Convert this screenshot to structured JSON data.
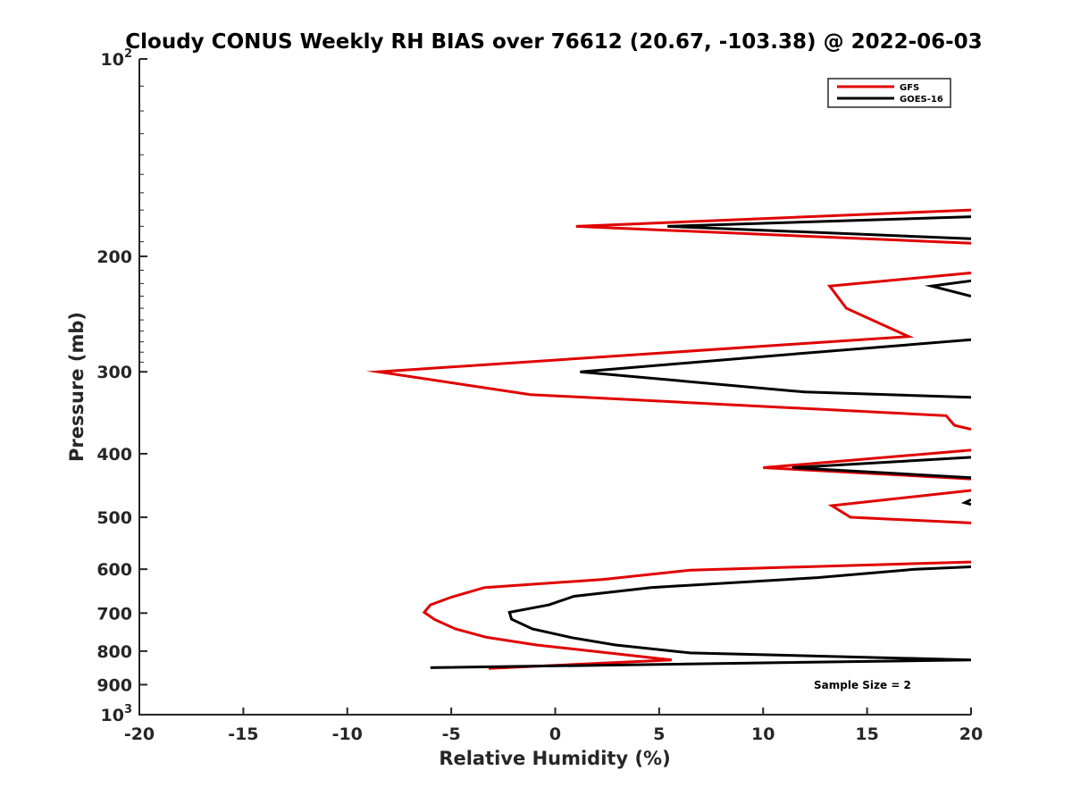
{
  "chart_data": {
    "type": "line",
    "title": "Cloudy CONUS Weekly RH BIAS over 76612 (20.67, -103.38) @ 2022-06-03",
    "xlabel": "Relative Humidity (%)",
    "ylabel": "Pressure (mb)",
    "xlim": [
      -20,
      20
    ],
    "ylim": [
      100,
      1000
    ],
    "yscale": "log",
    "y_reversed": true,
    "grid": false,
    "legend_position": "top-right",
    "annotation": "Sample Size = 2",
    "x_ticks": [
      {
        "value": -20,
        "label": "-20"
      },
      {
        "value": -15,
        "label": "-15"
      },
      {
        "value": -10,
        "label": "-10"
      },
      {
        "value": -5,
        "label": "-5"
      },
      {
        "value": 0,
        "label": "0"
      },
      {
        "value": 5,
        "label": "5"
      },
      {
        "value": 10,
        "label": "10"
      },
      {
        "value": 15,
        "label": "15"
      },
      {
        "value": 20,
        "label": "20"
      }
    ],
    "y_ticks": [
      {
        "value": 100,
        "base": "10",
        "exp": "2"
      },
      {
        "value": 200,
        "base": "200",
        "exp": ""
      },
      {
        "value": 300,
        "base": "300",
        "exp": ""
      },
      {
        "value": 400,
        "base": "400",
        "exp": ""
      },
      {
        "value": 500,
        "base": "500",
        "exp": ""
      },
      {
        "value": 600,
        "base": "600",
        "exp": ""
      },
      {
        "value": 700,
        "base": "700",
        "exp": ""
      },
      {
        "value": 800,
        "base": "800",
        "exp": ""
      },
      {
        "value": 900,
        "base": "900",
        "exp": ""
      },
      {
        "value": 1000,
        "base": "10",
        "exp": "3"
      }
    ],
    "series": [
      {
        "name": "GFS",
        "color": "#e00000",
        "segments": [
          [
            [
              20,
              170
            ],
            [
              1,
              180
            ],
            [
              20,
              191
            ]
          ],
          [
            [
              20,
              212
            ],
            [
              13.2,
              222
            ],
            [
              14,
              240
            ],
            [
              17,
              265
            ],
            [
              -8.5,
              300
            ],
            [
              -1.2,
              325
            ],
            [
              18.8,
              350
            ],
            [
              19.2,
              362
            ],
            [
              20,
              367
            ]
          ],
          [
            [
              20,
              395
            ],
            [
              10,
              420
            ],
            [
              20,
              437
            ]
          ],
          [
            [
              20,
              455
            ],
            [
              13.3,
              480
            ],
            [
              14.2,
              500
            ],
            [
              20,
              510
            ]
          ],
          [
            [
              20,
              585
            ],
            [
              6.5,
              602
            ],
            [
              2.3,
              622
            ],
            [
              -3.4,
              640
            ],
            [
              -5,
              662
            ],
            [
              -6,
              680
            ],
            [
              -6.3,
              698
            ],
            [
              -5.8,
              716
            ],
            [
              -4.8,
              740
            ],
            [
              -3.3,
              762
            ],
            [
              -0.9,
              783
            ],
            [
              5.6,
              825
            ],
            [
              -3.2,
              850
            ]
          ]
        ]
      },
      {
        "name": "GOES-16",
        "color": "#000000",
        "segments": [
          [
            [
              20,
              174
            ],
            [
              5.4,
              180
            ],
            [
              20,
              188
            ]
          ],
          [
            [
              20,
              218
            ],
            [
              18.1,
              222
            ],
            [
              20,
              230
            ]
          ],
          [
            [
              20,
              268
            ],
            [
              10.8,
              283
            ],
            [
              1.2,
              300
            ],
            [
              12,
              322
            ],
            [
              20,
              328
            ]
          ],
          [
            [
              20,
              405
            ],
            [
              11.4,
              420
            ],
            [
              20,
              435
            ]
          ],
          [
            [
              20,
              470
            ],
            [
              19.7,
              475
            ],
            [
              20,
              478
            ]
          ],
          [
            [
              20,
              595
            ],
            [
              17.3,
              600
            ],
            [
              12.6,
              618
            ],
            [
              4.6,
              640
            ],
            [
              0.9,
              660
            ],
            [
              -0.3,
              680
            ],
            [
              -2.2,
              698
            ],
            [
              -2.1,
              715
            ],
            [
              -1.1,
              740
            ],
            [
              0.8,
              763
            ],
            [
              2.9,
              783
            ],
            [
              6.5,
              805
            ],
            [
              20,
              825
            ],
            [
              -6,
              848
            ]
          ]
        ]
      }
    ]
  }
}
